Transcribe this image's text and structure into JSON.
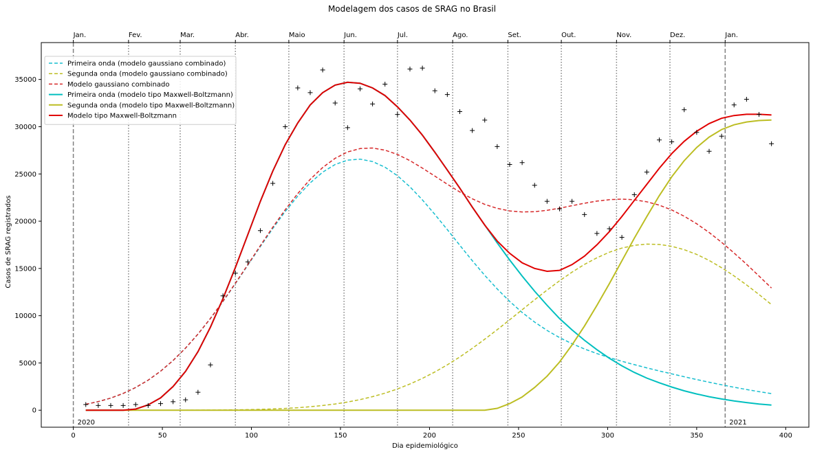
{
  "chart_data": {
    "type": "line",
    "title": "Modelagem dos casos de SRAG no Brasil",
    "xlabel": "Dia epidemiológico",
    "ylabel": "Casos de SRAG registrados",
    "xlim": [
      -18,
      413
    ],
    "ylim": [
      -1800,
      38900
    ],
    "xticks": [
      0,
      50,
      100,
      150,
      200,
      250,
      300,
      350,
      400
    ],
    "yticks": [
      0,
      5000,
      10000,
      15000,
      20000,
      25000,
      30000,
      35000
    ],
    "month_labels": [
      "Jan.",
      "Fev.",
      "Mar.",
      "Abr.",
      "Maio",
      "Jun.",
      "Jul.",
      "Ago.",
      "Set.",
      "Out.",
      "Nov.",
      "Dez.",
      "Jan."
    ],
    "month_days": [
      0,
      31,
      60,
      91,
      121,
      152,
      182,
      213,
      244,
      274,
      305,
      335,
      366
    ],
    "year_markers": [
      {
        "day": 0,
        "label": "2020"
      },
      {
        "day": 366,
        "label": "2021"
      }
    ],
    "grid": false,
    "legend": "upper-left",
    "x": [
      7,
      14,
      21,
      28,
      35,
      42,
      49,
      56,
      63,
      70,
      77,
      84,
      91,
      98,
      105,
      112,
      119,
      126,
      133,
      140,
      147,
      154,
      161,
      168,
      175,
      182,
      189,
      196,
      203,
      210,
      217,
      224,
      231,
      238,
      245,
      252,
      259,
      266,
      273,
      280,
      287,
      294,
      301,
      308,
      315,
      322,
      329,
      336,
      343,
      350,
      357,
      364,
      371,
      378,
      385,
      392
    ],
    "series": [
      {
        "name": "Primeira onda (modelo gaussiano combinado)",
        "color": "#17becf",
        "style": "dashed",
        "values": [
          631,
          910,
          1285,
          1776,
          2402,
          3180,
          4128,
          5255,
          6564,
          8052,
          9704,
          11496,
          13393,
          15350,
          17314,
          19227,
          21029,
          22659,
          24061,
          25187,
          25996,
          26460,
          26564,
          26310,
          25715,
          24809,
          23638,
          22256,
          20724,
          19102,
          17452,
          15828,
          14276,
          12831,
          11517,
          10348,
          9324,
          8440,
          7683,
          7035,
          6478,
          5993,
          5564,
          5176,
          4818,
          4480,
          4156,
          3844,
          3540,
          3246,
          2962,
          2689,
          2431,
          2188,
          1962,
          1753
        ]
      },
      {
        "name": "Segunda onda (modelo gaussiano combinado)",
        "color": "#bcbd22",
        "style": "dashed",
        "values": [
          0,
          0,
          0,
          0,
          0,
          1,
          2,
          3,
          6,
          10,
          16,
          26,
          41,
          62,
          92,
          134,
          191,
          267,
          367,
          496,
          660,
          866,
          1121,
          1432,
          1806,
          2250,
          2769,
          3367,
          4045,
          4803,
          5638,
          6543,
          7508,
          8521,
          9566,
          10627,
          11683,
          12713,
          13694,
          14605,
          15424,
          16133,
          16716,
          17157,
          17445,
          17574,
          17540,
          17343,
          16988,
          16484,
          15843,
          15079,
          14210,
          13256,
          12238,
          11178
        ]
      },
      {
        "name": "Modelo gaussiano combinado",
        "color": "#d62728",
        "style": "dashed",
        "values": [
          631,
          910,
          1285,
          1776,
          2402,
          3181,
          4130,
          5258,
          6570,
          8062,
          9720,
          11522,
          13434,
          15412,
          17406,
          19361,
          21220,
          22926,
          24428,
          25683,
          26656,
          27326,
          27685,
          27742,
          27521,
          27059,
          26407,
          25623,
          24769,
          23905,
          23090,
          22371,
          21784,
          21352,
          21083,
          20975,
          21007,
          21153,
          21377,
          21640,
          21902,
          22126,
          22280,
          22333,
          22263,
          22054,
          21696,
          21187,
          20528,
          19730,
          18805,
          17768,
          16641,
          15444,
          14200,
          12931
        ]
      },
      {
        "name": "Primeira onda (modelo tipo Maxwell-Boltzmann)",
        "color": "#00bfbf",
        "style": "solid",
        "values": [
          0,
          0,
          0,
          5,
          120,
          560,
          1300,
          2500,
          4100,
          6200,
          8800,
          11800,
          15100,
          18600,
          22100,
          25300,
          28100,
          30400,
          32300,
          33600,
          34400,
          34700,
          34600,
          34100,
          33300,
          32100,
          30700,
          29100,
          27300,
          25400,
          23500,
          21500,
          19600,
          17700,
          15900,
          14200,
          12600,
          11100,
          9700,
          8500,
          7400,
          6400,
          5500,
          4700,
          4000,
          3400,
          2900,
          2450,
          2050,
          1720,
          1430,
          1190,
          980,
          810,
          660,
          540
        ]
      },
      {
        "name": "Segunda onda (modelo tipo Maxwell-Boltzmann)",
        "color": "#bcbd22",
        "style": "solid",
        "values": [
          0,
          0,
          0,
          0,
          0,
          0,
          0,
          0,
          0,
          0,
          0,
          0,
          0,
          0,
          0,
          0,
          0,
          0,
          0,
          0,
          0,
          0,
          0,
          0,
          0,
          0,
          0,
          0,
          0,
          0,
          0,
          0,
          0,
          200,
          700,
          1400,
          2400,
          3600,
          5100,
          6900,
          8900,
          11100,
          13400,
          15800,
          18200,
          20500,
          22700,
          24700,
          26400,
          27800,
          28900,
          29700,
          30200,
          30500,
          30650,
          30700
        ]
      },
      {
        "name": "Modelo tipo Maxwell-Boltzmann",
        "color": "#e00000",
        "style": "solid",
        "values": [
          0,
          0,
          0,
          5,
          120,
          560,
          1300,
          2500,
          4100,
          6200,
          8800,
          11800,
          15100,
          18600,
          22100,
          25300,
          28100,
          30400,
          32300,
          33600,
          34400,
          34700,
          34600,
          34100,
          33300,
          32100,
          30700,
          29100,
          27300,
          25400,
          23500,
          21500,
          19600,
          17900,
          16600,
          15600,
          15000,
          14700,
          14800,
          15400,
          16300,
          17500,
          18900,
          20500,
          22200,
          23900,
          25600,
          27150,
          28450,
          29520,
          30330,
          30890,
          31180,
          31310,
          31310,
          31240
        ]
      },
      {
        "name": "",
        "type": "scatter",
        "marker": "+",
        "color": "#000000",
        "values": [
          600,
          500,
          500,
          500,
          600,
          500,
          700,
          900,
          1100,
          1900,
          4800,
          12100,
          14500,
          15700,
          19000,
          24000,
          30000,
          34100,
          33600,
          36000,
          32500,
          29900,
          34000,
          32400,
          34500,
          31300,
          36100,
          36200,
          33800,
          33400,
          31600,
          29600,
          30700,
          27900,
          26000,
          26200,
          23800,
          22100,
          21300,
          22100,
          20700,
          18700,
          19200,
          18300,
          22800,
          25200,
          28600,
          28400,
          31800,
          29400,
          27400,
          29000,
          32300,
          32900,
          31300,
          28200
        ]
      }
    ]
  }
}
